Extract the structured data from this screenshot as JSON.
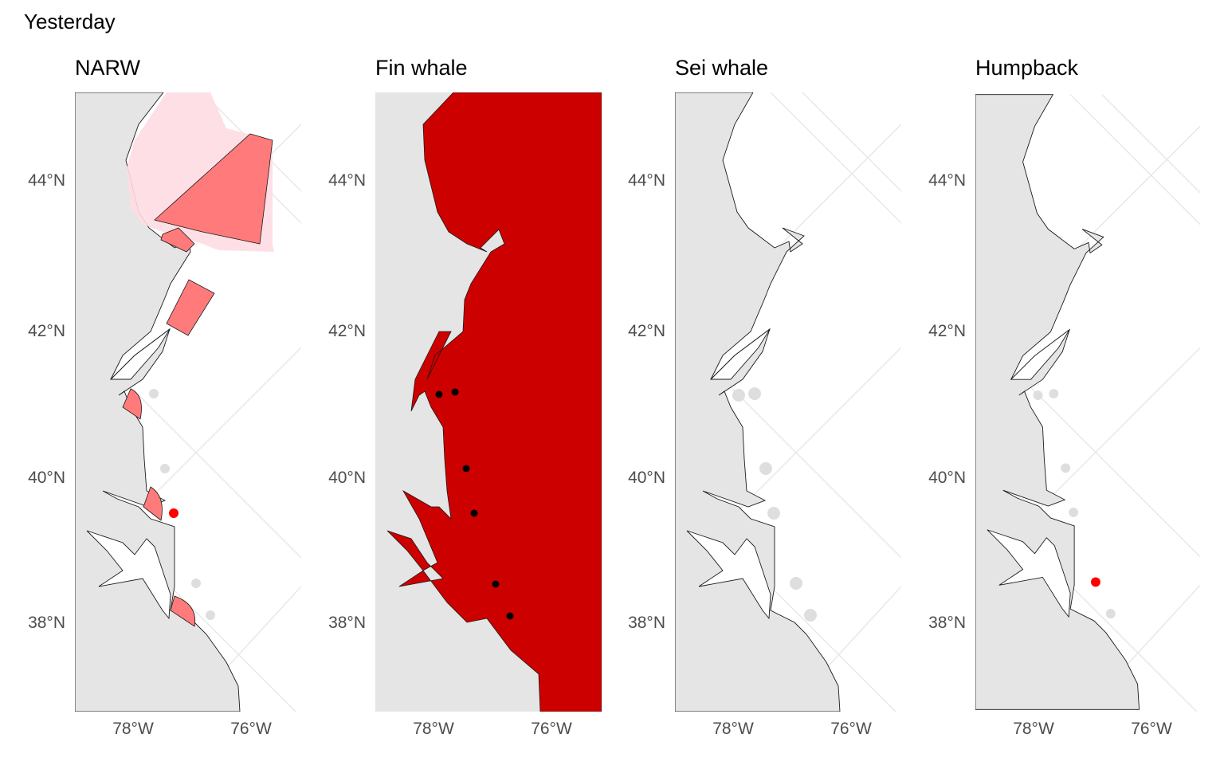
{
  "title": "Yesterday",
  "panels": [
    {
      "title": "NARW",
      "fill_color": "#ff0000",
      "observations": [
        {
          "lon": -77.35,
          "lat": 39.5,
          "species_present": true
        }
      ]
    },
    {
      "title": "Fin whale",
      "fill_color": "#cd0000",
      "observations": [
        {
          "lon": -78.0,
          "lat": 41.15
        },
        {
          "lon": -77.8,
          "lat": 41.2
        },
        {
          "lon": -77.62,
          "lat": 40.1
        },
        {
          "lon": -77.47,
          "lat": 39.5
        },
        {
          "lon": -77.0,
          "lat": 38.5
        },
        {
          "lon": -76.72,
          "lat": 38.1
        }
      ]
    },
    {
      "title": "Sei whale",
      "fill_color": "#e0e0e0",
      "observations": []
    },
    {
      "title": "Humpback",
      "fill_color": "#ff0000",
      "observations": [
        {
          "lon": -77.0,
          "lat": 38.5,
          "species_present": true
        }
      ]
    }
  ],
  "axes": {
    "lat_ticks": [
      "44°N",
      "42°N",
      "40°N",
      "38°N"
    ],
    "lon_ticks": [
      "78°W",
      "76°W"
    ]
  },
  "colors": {
    "land": "#e5e5e5",
    "coast": "#1a1a1a",
    "graticule": "#e8e8e8",
    "absent_points": "#dedede",
    "present_point": "#ff0000",
    "fin_area": "#cd0000",
    "narw_zone_dark": "#ff7b7b",
    "narw_zone_light": "#ffdce3"
  }
}
